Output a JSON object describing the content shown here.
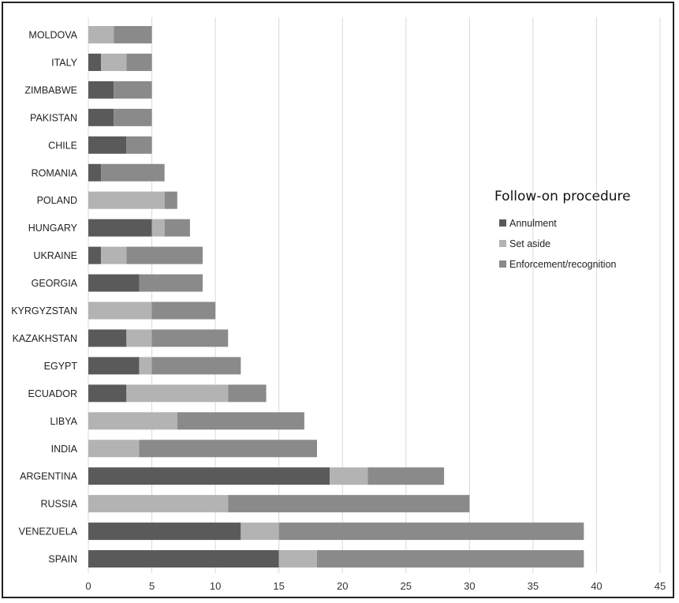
{
  "chart_data": {
    "type": "bar",
    "orientation": "horizontal",
    "stacked": true,
    "categories": [
      "MOLDOVA",
      "ITALY",
      "ZIMBABWE",
      "PAKISTAN",
      "CHILE",
      "ROMANIA",
      "POLAND",
      "HUNGARY",
      "UKRAINE",
      "GEORGIA",
      "KYRGYZSTAN",
      "KAZAKHSTAN",
      "EGYPT",
      "ECUADOR",
      "LIBYA",
      "INDIA",
      "ARGENTINA",
      "RUSSIA",
      "VENEZUELA",
      "SPAIN"
    ],
    "series": [
      {
        "name": "Annulment",
        "color": "#5a5a5a",
        "values": [
          0,
          1,
          2,
          2,
          3,
          1,
          0,
          5,
          1,
          4,
          0,
          3,
          4,
          3,
          0,
          0,
          19,
          0,
          12,
          15
        ]
      },
      {
        "name": "Set aside",
        "color": "#b3b3b3",
        "values": [
          2,
          2,
          0,
          0,
          0,
          0,
          6,
          1,
          2,
          0,
          5,
          2,
          1,
          8,
          7,
          4,
          3,
          11,
          3,
          3
        ]
      },
      {
        "name": "Enforcement/recognition",
        "color": "#8a8a8a",
        "values": [
          3,
          2,
          3,
          3,
          2,
          5,
          1,
          2,
          6,
          5,
          5,
          6,
          7,
          3,
          10,
          14,
          6,
          19,
          24,
          21
        ]
      }
    ],
    "xlim": [
      0,
      45
    ],
    "xticks": [
      "0",
      "5",
      "10",
      "15",
      "20",
      "25",
      "30",
      "35",
      "40",
      "45"
    ],
    "grid": true,
    "legend": {
      "title": "Follow-on procedure",
      "placement": "right"
    }
  }
}
